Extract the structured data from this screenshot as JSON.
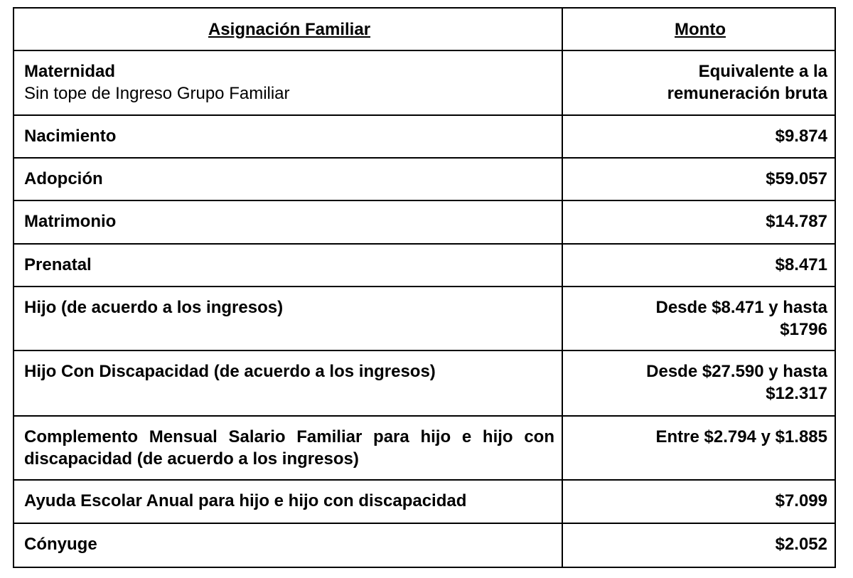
{
  "table": {
    "headers": [
      "Asignación Familiar",
      "Monto"
    ],
    "rows": [
      {
        "name": "Maternidad",
        "note": "Sin tope de Ingreso Grupo Familiar",
        "amount": "Equivalente a la remuneración bruta"
      },
      {
        "name": "Nacimiento",
        "amount": "$9.874"
      },
      {
        "name": "Adopción",
        "amount": "$59.057"
      },
      {
        "name": "Matrimonio",
        "amount": "$14.787"
      },
      {
        "name": "Prenatal",
        "amount": "$8.471"
      },
      {
        "name": "Hijo (de acuerdo a los ingresos)",
        "amount": "Desde $8.471 y hasta $1796"
      },
      {
        "name": "Hijo Con Discapacidad (de acuerdo a los ingresos)",
        "amount": "Desde $27.590 y hasta $12.317"
      },
      {
        "name": "Complemento Mensual Salario Familiar para hijo e hijo con discapacidad (de acuerdo a los ingresos)",
        "amount": "Entre $2.794 y $1.885"
      },
      {
        "name": "Ayuda Escolar Anual para hijo e hijo con discapacidad",
        "amount": "$7.099"
      },
      {
        "name": "Cónyuge",
        "amount": "$2.052"
      }
    ]
  }
}
